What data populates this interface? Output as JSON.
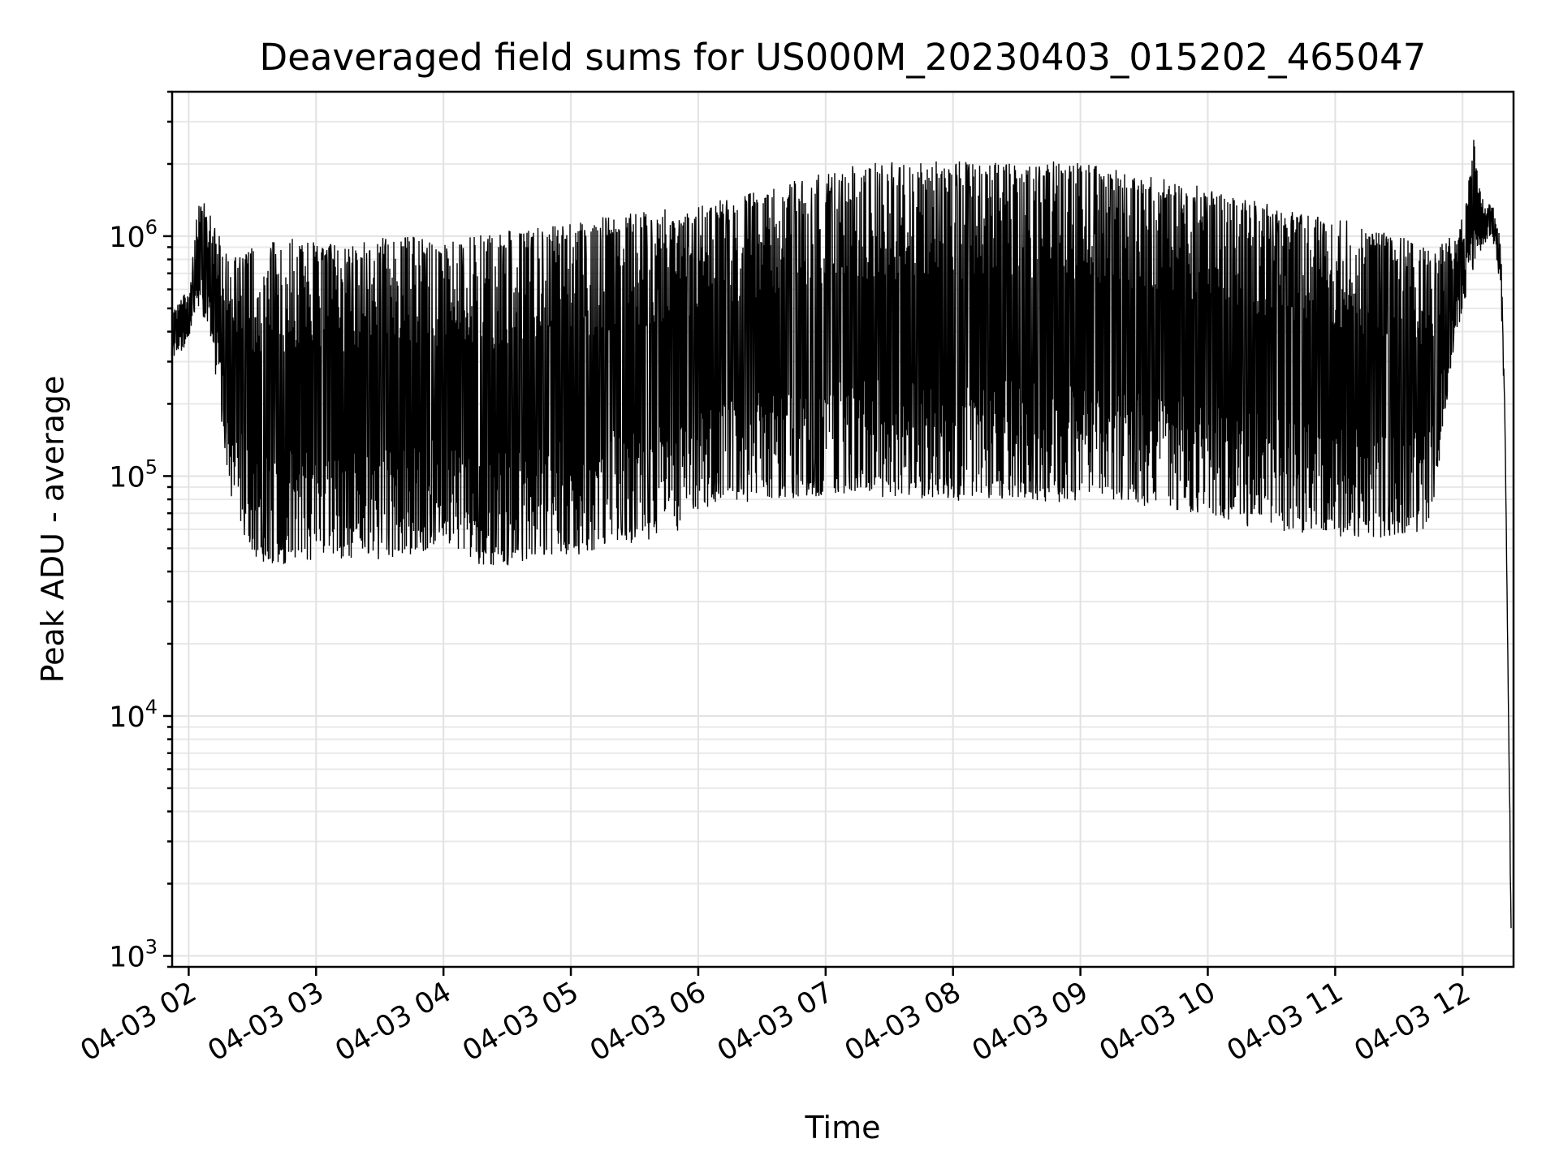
{
  "chart_data": {
    "type": "line",
    "title": "Deaveraged field sums for US000M_20230403_015202_465047",
    "xlabel": "Time",
    "ylabel": "Peak ADU - average",
    "yscale": "log",
    "ylim": [
      900,
      4000000
    ],
    "xlim_hours": [
      1.87,
      12.4
    ],
    "grid": "on (major and minor)",
    "x_ticks": [
      "04-03 02",
      "04-03 03",
      "04-03 04",
      "04-03 05",
      "04-03 06",
      "04-03 07",
      "04-03 08",
      "04-03 09",
      "04-03 10",
      "04-03 11",
      "04-03 12"
    ],
    "y_ticks": [
      {
        "base": "10",
        "exp": "3",
        "value": 1000
      },
      {
        "base": "10",
        "exp": "4",
        "value": 10000
      },
      {
        "base": "10",
        "exp": "5",
        "value": 100000
      },
      {
        "base": "10",
        "exp": "6",
        "value": 1000000
      }
    ],
    "series": [
      {
        "color": "#000000",
        "note_visual": "dense oscillating signal; upper and lower envelopes sampled",
        "envelope": {
          "time": [
            "04-03 01:52",
            "04-03 02:00",
            "04-03 02:05",
            "04-03 02:10",
            "04-03 02:20",
            "04-03 02:30",
            "04-03 02:45",
            "04-03 03:00",
            "04-03 03:15",
            "04-03 03:30",
            "04-03 03:45",
            "04-03 04:00",
            "04-03 04:15",
            "04-03 04:30",
            "04-03 04:45",
            "04-03 05:00",
            "04-03 05:15",
            "04-03 05:30",
            "04-03 05:45",
            "04-03 06:00",
            "04-03 06:15",
            "04-03 06:30",
            "04-03 06:45",
            "04-03 07:00",
            "04-03 07:15",
            "04-03 07:30",
            "04-03 07:45",
            "04-03 08:00",
            "04-03 08:15",
            "04-03 08:30",
            "04-03 08:45",
            "04-03 09:00",
            "04-03 09:15",
            "04-03 09:30",
            "04-03 09:45",
            "04-03 10:00",
            "04-03 10:15",
            "04-03 10:30",
            "04-03 10:45",
            "04-03 11:00",
            "04-03 11:15",
            "04-03 11:30",
            "04-03 11:45",
            "04-03 11:55",
            "04-03 12:00",
            "04-03 12:05",
            "04-03 12:10",
            "04-03 12:13",
            "04-03 12:15",
            "04-03 12:18",
            "04-03 12:20",
            "04-03 12:23"
          ],
          "upper": [
            500000,
            600000,
            1500000,
            1300000,
            800000,
            900000,
            1000000,
            950000,
            900000,
            1000000,
            1000000,
            950000,
            1000000,
            1050000,
            1100000,
            1150000,
            1200000,
            1250000,
            1300000,
            1350000,
            1450000,
            1550000,
            1700000,
            1850000,
            2000000,
            2050000,
            2050000,
            2050000,
            2050000,
            2050000,
            2050000,
            2050000,
            1900000,
            1800000,
            1700000,
            1600000,
            1450000,
            1350000,
            1250000,
            1200000,
            1100000,
            1000000,
            900000,
            1000000,
            1200000,
            2700000,
            1350000,
            1400000,
            1300000,
            1000000,
            170000,
            1000
          ],
          "lower": [
            300000,
            350000,
            500000,
            400000,
            80000,
            45000,
            42000,
            45000,
            45000,
            45000,
            45000,
            55000,
            42000,
            42000,
            45000,
            45000,
            50000,
            52000,
            55000,
            65000,
            75000,
            80000,
            80000,
            80000,
            85000,
            80000,
            80000,
            78000,
            80000,
            80000,
            78000,
            75000,
            80000,
            75000,
            72000,
            68000,
            62000,
            60000,
            57000,
            55000,
            55000,
            55000,
            60000,
            300000,
            500000,
            700000,
            900000,
            1000000,
            900000,
            600000,
            150000,
            1000
          ]
        }
      }
    ]
  }
}
